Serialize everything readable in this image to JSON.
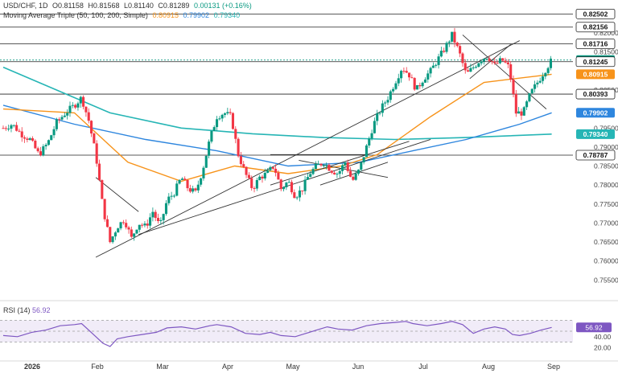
{
  "header": {
    "symbol": "USD/CHF, 1D",
    "open": "O0.81158",
    "high": "H0.81568",
    "low": "L0.81140",
    "close": "C0.81289",
    "change": "0.00131 (+0.16%)",
    "indicator_name": "Moving Average Triple (50, 100, 200, Simple)",
    "ma50": "0.80915",
    "ma100": "0.79902",
    "ma200": "0.79340",
    "rsi_label": "RSI (14)",
    "rsi_value": "56.92"
  },
  "colors": {
    "up": "#089981",
    "down": "#f23645",
    "ma50": "#f7931a",
    "ma100": "#2e86de",
    "ma200": "#26b5b5",
    "rsi": "#7e57c2",
    "badge_close": "#089981",
    "trend": "#333333"
  },
  "chart_data": {
    "type": "candlestick",
    "price_axis": {
      "min": 0.75,
      "max": 0.827,
      "ticks": [
        "0.82000",
        "0.81500",
        "0.80500",
        "0.79500",
        "0.79000",
        "0.78500",
        "0.78000",
        "0.77500",
        "0.77000",
        "0.76500",
        "0.76000",
        "0.75500"
      ]
    },
    "x_labels": [
      "2026",
      "Feb",
      "Mar",
      "Apr",
      "May",
      "Jun",
      "Jul",
      "Aug",
      "Sep"
    ],
    "level_lines": [
      {
        "value": 0.82502,
        "label": "0.82502"
      },
      {
        "value": 0.82156,
        "label": "0.82156"
      },
      {
        "value": 0.81716,
        "label": "0.81716"
      },
      {
        "value": 0.81289,
        "label": "0.81289"
      },
      {
        "value": 0.81245,
        "label": "0.81245"
      },
      {
        "value": 0.80393,
        "label": "0.80393"
      },
      {
        "value": 0.78787,
        "label": "0.78787"
      }
    ],
    "ma_badges": [
      {
        "value": 0.80915,
        "label": "0.80915",
        "series": "ma50"
      },
      {
        "value": 0.79902,
        "label": "0.79902",
        "series": "ma100"
      },
      {
        "value": 0.7934,
        "label": "0.79340",
        "series": "ma200"
      }
    ],
    "close_path": [
      [
        0,
        0.795
      ],
      [
        5,
        0.796
      ],
      [
        10,
        0.7935
      ],
      [
        15,
        0.792
      ],
      [
        20,
        0.788
      ],
      [
        25,
        0.791
      ],
      [
        30,
        0.7965
      ],
      [
        35,
        0.799
      ],
      [
        40,
        0.801
      ],
      [
        44,
        0.803
      ],
      [
        48,
        0.797
      ],
      [
        52,
        0.788
      ],
      [
        56,
        0.774
      ],
      [
        60,
        0.765
      ],
      [
        64,
        0.769
      ],
      [
        68,
        0.771
      ],
      [
        72,
        0.766
      ],
      [
        76,
        0.77
      ],
      [
        80,
        0.769
      ],
      [
        84,
        0.773
      ],
      [
        88,
        0.769
      ],
      [
        92,
        0.776
      ],
      [
        96,
        0.778
      ],
      [
        100,
        0.782
      ],
      [
        104,
        0.779
      ],
      [
        108,
        0.778
      ],
      [
        112,
        0.784
      ],
      [
        116,
        0.792
      ],
      [
        120,
        0.798
      ],
      [
        124,
        0.799
      ],
      [
        128,
        0.798
      ],
      [
        132,
        0.788
      ],
      [
        136,
        0.783
      ],
      [
        140,
        0.779
      ],
      [
        144,
        0.782
      ],
      [
        148,
        0.783
      ],
      [
        152,
        0.785
      ],
      [
        156,
        0.779
      ],
      [
        160,
        0.781
      ],
      [
        164,
        0.777
      ],
      [
        168,
        0.779
      ],
      [
        172,
        0.783
      ],
      [
        176,
        0.785
      ],
      [
        180,
        0.786
      ],
      [
        184,
        0.784
      ],
      [
        188,
        0.783
      ],
      [
        192,
        0.786
      ],
      [
        196,
        0.781
      ],
      [
        200,
        0.784
      ],
      [
        204,
        0.79
      ],
      [
        208,
        0.796
      ],
      [
        212,
        0.8
      ],
      [
        216,
        0.803
      ],
      [
        220,
        0.807
      ],
      [
        224,
        0.811
      ],
      [
        228,
        0.809
      ],
      [
        232,
        0.805
      ],
      [
        236,
        0.808
      ],
      [
        240,
        0.81
      ],
      [
        244,
        0.813
      ],
      [
        248,
        0.816
      ],
      [
        252,
        0.8195
      ],
      [
        256,
        0.815
      ],
      [
        260,
        0.809
      ],
      [
        264,
        0.811
      ],
      [
        268,
        0.813
      ],
      [
        272,
        0.814
      ],
      [
        276,
        0.8115
      ],
      [
        280,
        0.813
      ],
      [
        284,
        0.811
      ],
      [
        288,
        0.799
      ],
      [
        292,
        0.799
      ],
      [
        296,
        0.804
      ],
      [
        300,
        0.807
      ],
      [
        304,
        0.81
      ],
      [
        308,
        0.8129
      ]
    ],
    "ma50_path": [
      [
        0,
        0.8
      ],
      [
        40,
        0.799
      ],
      [
        70,
        0.786
      ],
      [
        100,
        0.781
      ],
      [
        130,
        0.785
      ],
      [
        160,
        0.783
      ],
      [
        190,
        0.785
      ],
      [
        210,
        0.788
      ],
      [
        240,
        0.798
      ],
      [
        270,
        0.807
      ],
      [
        308,
        0.80915
      ]
    ],
    "ma100_path": [
      [
        0,
        0.801
      ],
      [
        40,
        0.796
      ],
      [
        80,
        0.792
      ],
      [
        120,
        0.789
      ],
      [
        160,
        0.785
      ],
      [
        200,
        0.786
      ],
      [
        230,
        0.789
      ],
      [
        260,
        0.792
      ],
      [
        290,
        0.796
      ],
      [
        308,
        0.79902
      ]
    ],
    "ma200_path": [
      [
        0,
        0.811
      ],
      [
        30,
        0.805
      ],
      [
        60,
        0.799
      ],
      [
        100,
        0.795
      ],
      [
        140,
        0.7935
      ],
      [
        180,
        0.7925
      ],
      [
        220,
        0.792
      ],
      [
        260,
        0.7925
      ],
      [
        308,
        0.7934
      ]
    ],
    "trendlines": [
      [
        [
          52,
          0.761
        ],
        [
          290,
          0.818
        ]
      ],
      [
        [
          52,
          0.782
        ],
        [
          76,
          0.773
        ]
      ],
      [
        [
          76,
          0.767
        ],
        [
          240,
          0.792
        ]
      ],
      [
        [
          150,
          0.78
        ],
        [
          228,
          0.7915
        ]
      ],
      [
        [
          150,
          0.788
        ],
        [
          205,
          0.788
        ]
      ],
      [
        [
          178,
          0.78
        ],
        [
          216,
          0.786
        ]
      ],
      [
        [
          166,
          0.7865
        ],
        [
          216,
          0.782
        ]
      ],
      [
        [
          258,
          0.8195
        ],
        [
          305,
          0.8
        ]
      ],
      [
        [
          262,
          0.808
        ],
        [
          285,
          0.817
        ]
      ]
    ],
    "rsi": {
      "label": "RSI (14)",
      "value": 56.92,
      "ticks": [
        "60.00",
        "40.00",
        "20.00"
      ],
      "band": [
        30,
        70
      ],
      "path": [
        [
          0,
          42
        ],
        [
          8,
          40
        ],
        [
          16,
          48
        ],
        [
          24,
          52
        ],
        [
          32,
          60
        ],
        [
          40,
          62
        ],
        [
          44,
          64
        ],
        [
          48,
          52
        ],
        [
          52,
          40
        ],
        [
          56,
          28
        ],
        [
          60,
          22
        ],
        [
          64,
          36
        ],
        [
          70,
          40
        ],
        [
          78,
          44
        ],
        [
          86,
          48
        ],
        [
          92,
          56
        ],
        [
          100,
          58
        ],
        [
          108,
          54
        ],
        [
          116,
          60
        ],
        [
          120,
          62
        ],
        [
          128,
          58
        ],
        [
          136,
          46
        ],
        [
          144,
          44
        ],
        [
          150,
          48
        ],
        [
          156,
          42
        ],
        [
          164,
          40
        ],
        [
          170,
          46
        ],
        [
          176,
          52
        ],
        [
          182,
          58
        ],
        [
          188,
          54
        ],
        [
          196,
          52
        ],
        [
          204,
          60
        ],
        [
          212,
          64
        ],
        [
          220,
          66
        ],
        [
          226,
          68
        ],
        [
          230,
          64
        ],
        [
          238,
          60
        ],
        [
          246,
          64
        ],
        [
          252,
          68
        ],
        [
          258,
          62
        ],
        [
          264,
          46
        ],
        [
          270,
          54
        ],
        [
          276,
          58
        ],
        [
          282,
          54
        ],
        [
          286,
          44
        ],
        [
          290,
          42
        ],
        [
          296,
          46
        ],
        [
          302,
          52
        ],
        [
          308,
          56.92
        ]
      ]
    }
  }
}
